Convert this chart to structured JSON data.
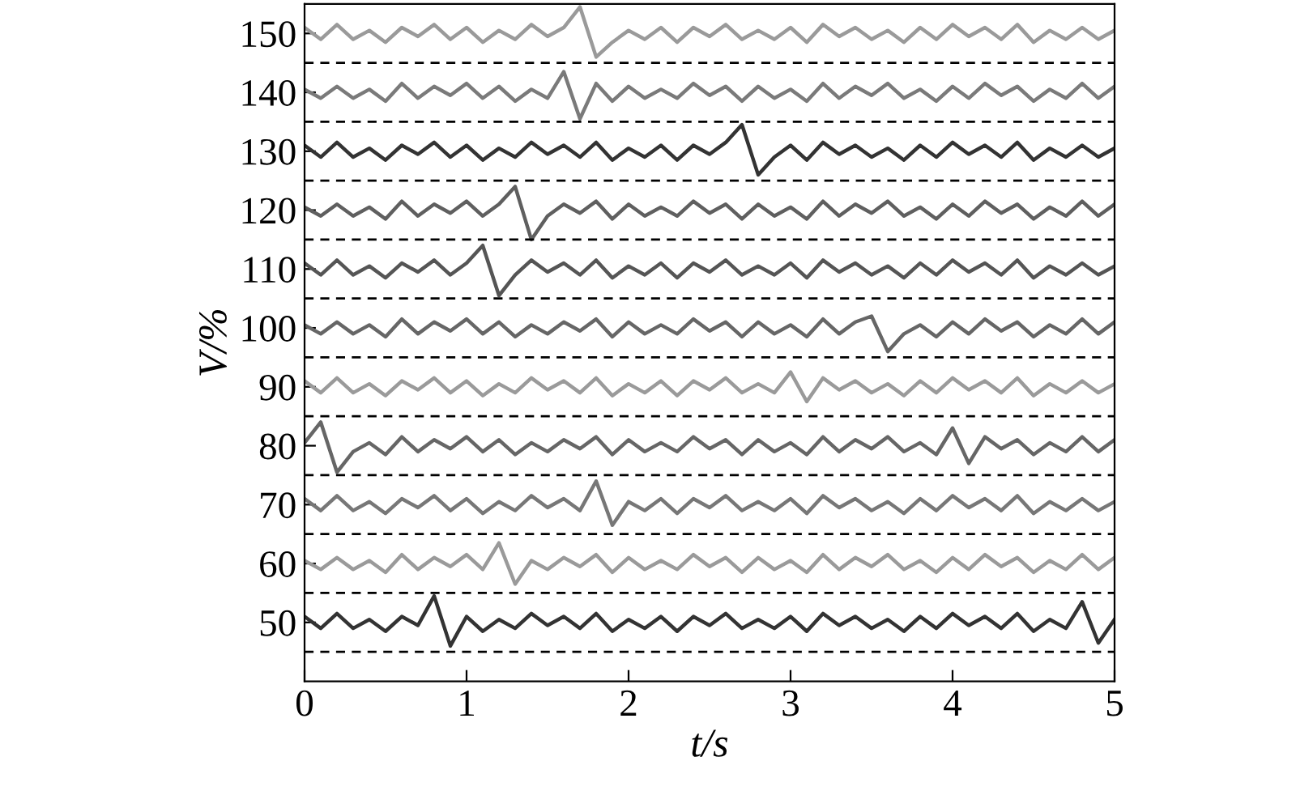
{
  "chart_data": {
    "type": "line",
    "xlabel": "t/s",
    "ylabel": "V/%",
    "x": [
      0,
      0.1,
      0.2,
      0.3,
      0.4,
      0.5,
      0.6,
      0.7,
      0.8,
      0.9,
      1,
      1.1,
      1.2,
      1.3,
      1.4,
      1.5,
      1.6,
      1.7,
      1.8,
      1.9,
      2,
      2.1,
      2.2,
      2.3,
      2.4,
      2.5,
      2.6,
      2.7,
      2.8,
      2.9,
      3,
      3.1,
      3.2,
      3.3,
      3.4,
      3.5,
      3.6,
      3.7,
      3.8,
      3.9,
      4,
      4.1,
      4.2,
      4.3,
      4.4,
      4.5,
      4.6,
      4.7,
      4.8,
      4.9,
      5
    ],
    "series": [
      {
        "color": "#9a9a9a",
        "values": [
          151,
          149,
          151.5,
          149,
          150.5,
          148.5,
          151,
          149.5,
          151.5,
          149,
          151,
          148.5,
          150.5,
          149,
          151.5,
          149.5,
          151,
          154.5,
          146,
          148.5,
          150.5,
          149,
          151,
          148.5,
          151,
          149.5,
          151.5,
          149,
          150.5,
          149,
          151,
          148.5,
          151.5,
          149.5,
          151,
          149,
          150.5,
          148.5,
          151,
          149,
          151.5,
          149.5,
          151,
          149,
          151.5,
          148.5,
          150.5,
          149,
          151,
          149,
          150.5
        ]
      },
      {
        "color": "#7a7a7a",
        "values": [
          140.5,
          139,
          141,
          139,
          140.5,
          138.5,
          141.5,
          139,
          141,
          139.5,
          141.5,
          139,
          141,
          138.5,
          140.5,
          139,
          143.5,
          135.5,
          141.5,
          138.5,
          141,
          139,
          140.5,
          139,
          141.5,
          139.5,
          141,
          138.5,
          141,
          139,
          140.5,
          138.5,
          141.5,
          139,
          141,
          139.5,
          141.5,
          139,
          140.5,
          138.5,
          141,
          139,
          141.5,
          139.5,
          141,
          138.5,
          140.5,
          139,
          141.5,
          139,
          141
        ]
      },
      {
        "color": "#333333",
        "values": [
          131,
          129,
          131.5,
          129,
          130.5,
          128.5,
          131,
          129.5,
          131.5,
          129,
          131,
          128.5,
          130.5,
          129,
          131.5,
          129.5,
          131,
          129,
          131.5,
          128.5,
          130.5,
          129,
          131,
          128.5,
          131,
          129.5,
          131.5,
          134.5,
          126,
          129,
          131,
          128.5,
          131.5,
          129.5,
          131,
          129,
          130.5,
          128.5,
          131,
          129,
          131.5,
          129.5,
          131,
          129,
          131.5,
          128.5,
          130.5,
          129,
          131,
          129,
          130.5
        ]
      },
      {
        "color": "#5f5f5f",
        "values": [
          120.5,
          119,
          121,
          119,
          120.5,
          118.5,
          121.5,
          119,
          121,
          119.5,
          121.5,
          119,
          121,
          124,
          115,
          119,
          121,
          119.5,
          121.5,
          118.5,
          121,
          119,
          120.5,
          119,
          121.5,
          119.5,
          121,
          118.5,
          121,
          119,
          120.5,
          118.5,
          121.5,
          119,
          121,
          119.5,
          121.5,
          119,
          120.5,
          118.5,
          121,
          119,
          121.5,
          119.5,
          121,
          118.5,
          120.5,
          119,
          121.5,
          119,
          121
        ]
      },
      {
        "color": "#555555",
        "values": [
          111,
          109,
          111.5,
          109,
          110.5,
          108.5,
          111,
          109.5,
          111.5,
          109,
          111,
          114,
          105.5,
          109,
          111.5,
          109.5,
          111,
          109,
          111.5,
          108.5,
          110.5,
          109,
          111,
          108.5,
          111,
          109.5,
          111.5,
          109,
          110.5,
          109,
          111,
          108.5,
          111.5,
          109.5,
          111,
          109,
          110.5,
          108.5,
          111,
          109,
          111.5,
          109.5,
          111,
          109,
          111.5,
          108.5,
          110.5,
          109,
          111,
          109,
          110.5
        ]
      },
      {
        "color": "#666666",
        "values": [
          100.5,
          99,
          101,
          99,
          100.5,
          98.5,
          101.5,
          99,
          101,
          99.5,
          101.5,
          99,
          101,
          98.5,
          100.5,
          99,
          101,
          99.5,
          101.5,
          98.5,
          101,
          99,
          100.5,
          99,
          101.5,
          99.5,
          101,
          98.5,
          101,
          99,
          100.5,
          98.5,
          101.5,
          99,
          101,
          102,
          96,
          99,
          100.5,
          98.5,
          101,
          99,
          101.5,
          99.5,
          101,
          98.5,
          100.5,
          99,
          101.5,
          99,
          101
        ]
      },
      {
        "color": "#9a9a9a",
        "values": [
          91,
          89,
          91.5,
          89,
          90.5,
          88.5,
          91,
          89.5,
          91.5,
          89,
          91,
          88.5,
          90.5,
          89,
          91.5,
          89.5,
          91,
          89,
          91.5,
          88.5,
          90.5,
          89,
          91,
          88.5,
          91,
          89.5,
          91.5,
          89,
          90.5,
          89,
          92.5,
          87.5,
          91.5,
          89.5,
          91,
          89,
          90.5,
          88.5,
          91,
          89,
          91.5,
          89.5,
          91,
          89,
          91.5,
          88.5,
          90.5,
          89,
          91,
          89,
          90.5
        ]
      },
      {
        "color": "#666666",
        "values": [
          80.5,
          84,
          75.5,
          79,
          80.5,
          78.5,
          81.5,
          79,
          81,
          79.5,
          81.5,
          79,
          81,
          78.5,
          80.5,
          79,
          81,
          79.5,
          81.5,
          78.5,
          81,
          79,
          80.5,
          79,
          81.5,
          79.5,
          81,
          78.5,
          81,
          79,
          80.5,
          78.5,
          81.5,
          79,
          81,
          79.5,
          81.5,
          79,
          80.5,
          78.5,
          83,
          77,
          81.5,
          79.5,
          81,
          78.5,
          80.5,
          79,
          81.5,
          79,
          81
        ]
      },
      {
        "color": "#777777",
        "values": [
          71,
          69,
          71.5,
          69,
          70.5,
          68.5,
          71,
          69.5,
          71.5,
          69,
          71,
          68.5,
          70.5,
          69,
          71.5,
          69.5,
          71,
          69,
          74,
          66.5,
          70.5,
          69,
          71,
          68.5,
          71,
          69.5,
          71.5,
          69,
          70.5,
          69,
          71,
          68.5,
          71.5,
          69.5,
          71,
          69,
          70.5,
          68.5,
          71,
          69,
          71.5,
          69.5,
          71,
          69,
          71.5,
          68.5,
          70.5,
          69,
          71,
          69,
          70.5
        ]
      },
      {
        "color": "#9a9a9a",
        "values": [
          60.5,
          59,
          61,
          59,
          60.5,
          58.5,
          61.5,
          59,
          61,
          59.5,
          61.5,
          59,
          63.5,
          56.5,
          60.5,
          59,
          61,
          59.5,
          61.5,
          58.5,
          61,
          59,
          60.5,
          59,
          61.5,
          59.5,
          61,
          58.5,
          61,
          59,
          60.5,
          58.5,
          61.5,
          59,
          61,
          59.5,
          61.5,
          59,
          60.5,
          58.5,
          61,
          59,
          61.5,
          59.5,
          61,
          58.5,
          60.5,
          59,
          61.5,
          59,
          61
        ]
      },
      {
        "color": "#333333",
        "values": [
          51,
          49,
          51.5,
          49,
          50.5,
          48.5,
          51,
          49.5,
          54.5,
          46,
          51,
          48.5,
          50.5,
          49,
          51.5,
          49.5,
          51,
          49,
          51.5,
          48.5,
          50.5,
          49,
          51,
          48.5,
          51,
          49.5,
          51.5,
          49,
          50.5,
          49,
          51,
          48.5,
          51.5,
          49.5,
          51,
          49,
          50.5,
          48.5,
          51,
          49,
          51.5,
          49.5,
          51,
          49,
          51.5,
          48.5,
          50.5,
          49,
          53.5,
          46.5,
          50.5
        ]
      }
    ],
    "xlim": [
      0,
      5
    ],
    "xticks": [
      0,
      1,
      2,
      3,
      4,
      5
    ],
    "ylim": [
      40,
      155
    ],
    "yticks": [
      50,
      60,
      70,
      80,
      90,
      100,
      110,
      120,
      130,
      140,
      150
    ],
    "ref_lines": [
      {
        "axis": "y",
        "value": 45,
        "color": "#000000",
        "line_style": "dashed"
      },
      {
        "axis": "y",
        "value": 55,
        "color": "#000000",
        "line_style": "dashed"
      },
      {
        "axis": "y",
        "value": 65,
        "color": "#000000",
        "line_style": "dashed"
      },
      {
        "axis": "y",
        "value": 75,
        "color": "#000000",
        "line_style": "dashed"
      },
      {
        "axis": "y",
        "value": 85,
        "color": "#000000",
        "line_style": "dashed"
      },
      {
        "axis": "y",
        "value": 95,
        "color": "#000000",
        "line_style": "dashed"
      },
      {
        "axis": "y",
        "value": 105,
        "color": "#000000",
        "line_style": "dashed"
      },
      {
        "axis": "y",
        "value": 115,
        "color": "#000000",
        "line_style": "dashed"
      },
      {
        "axis": "y",
        "value": 125,
        "color": "#000000",
        "line_style": "dashed"
      },
      {
        "axis": "y",
        "value": 135,
        "color": "#000000",
        "line_style": "dashed"
      },
      {
        "axis": "y",
        "value": 145,
        "color": "#000000",
        "line_style": "dashed"
      }
    ],
    "grid": false,
    "legend": false,
    "marker": "none",
    "line_style": "solid"
  }
}
